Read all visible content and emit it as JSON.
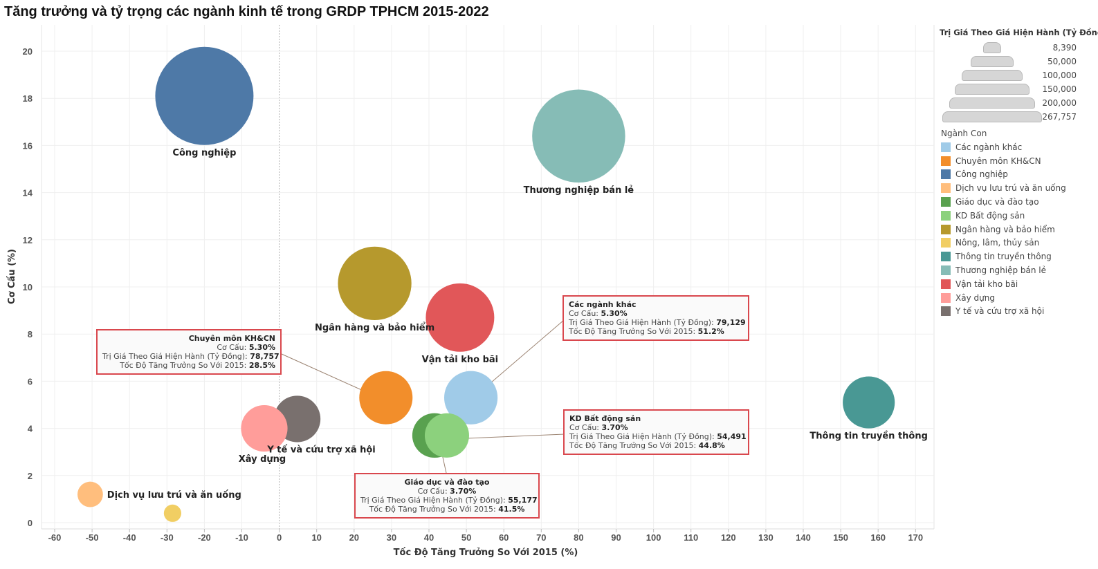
{
  "title": "Tăng trưởng và tỷ trọng các ngành kinh tế trong GRDP TPHCM 2015-2022",
  "chart_data": {
    "type": "scatter",
    "xlabel": "Tốc Độ Tăng Trưởng So Với 2015 (%)",
    "ylabel": "Cơ Cấu (%)",
    "xlim": [
      -60,
      170
    ],
    "ylim": [
      0,
      20
    ],
    "x_ticks": [
      "-60",
      "-50",
      "-40",
      "-30",
      "-20",
      "-10",
      "0",
      "10",
      "20",
      "30",
      "40",
      "50",
      "60",
      "70",
      "80",
      "90",
      "100",
      "110",
      "120",
      "130",
      "140",
      "150",
      "160",
      "170"
    ],
    "y_ticks": [
      "0",
      "2",
      "4",
      "6",
      "8",
      "10",
      "12",
      "14",
      "16",
      "18",
      "20"
    ],
    "grid": true,
    "points": [
      {
        "name": "Công nghiệp",
        "x": -20,
        "y": 18.1,
        "size": 267757,
        "color": "#4e79a7",
        "label": "Công nghiệp"
      },
      {
        "name": "Thương nghiệp bán lẻ",
        "x": 80,
        "y": 16.4,
        "size": 240000,
        "color": "#86bcb6",
        "label": "Thương nghiệp bán lẻ"
      },
      {
        "name": "Ngân hàng và bảo hiểm",
        "x": 25.5,
        "y": 10.15,
        "size": 150000,
        "color": "#b6992d",
        "label": "Ngân hàng và bảo hiểm"
      },
      {
        "name": "Vận tải kho bãi",
        "x": 48.3,
        "y": 8.7,
        "size": 130000,
        "color": "#e15759",
        "label": "Vận tải kho bãi"
      },
      {
        "name": "Các ngành khác",
        "x": 51.2,
        "y": 5.3,
        "size": 79129,
        "color": "#a0cbe8",
        "label": ""
      },
      {
        "name": "Chuyên môn KH&CN",
        "x": 28.5,
        "y": 5.3,
        "size": 78757,
        "color": "#f28e2b",
        "label": ""
      },
      {
        "name": "KD Bất động sản",
        "x": 44.8,
        "y": 3.7,
        "size": 54491,
        "color": "#8cd17d",
        "label": ""
      },
      {
        "name": "Giáo dục và đào tạo",
        "x": 41.5,
        "y": 3.7,
        "size": 55177,
        "color": "#59a14f",
        "label": ""
      },
      {
        "name": "Thông tin truyền thông",
        "x": 157.5,
        "y": 5.1,
        "size": 75000,
        "color": "#499894",
        "label": "Thông tin truyền thông"
      },
      {
        "name": "Y tế và cứu trợ xã hội",
        "x": 4.8,
        "y": 4.4,
        "size": 60000,
        "color": "#79706e",
        "label": "Y tế và cứu trợ xã hội"
      },
      {
        "name": "Xây dựng",
        "x": -4,
        "y": 4.0,
        "size": 60000,
        "color": "#ff9d9a",
        "label": "Xây dựng"
      },
      {
        "name": "Dịch vụ lưu trú và ăn uống",
        "x": -50.5,
        "y": 1.2,
        "size": 18000,
        "color": "#ffbe7d",
        "label": "Dịch vụ lưu trú và ăn uống"
      },
      {
        "name": "Nông, lâm, thủy sản",
        "x": -28.5,
        "y": 0.4,
        "size": 8390,
        "color": "#f1ce63",
        "label": ""
      }
    ],
    "tooltips": [
      {
        "name": "Chuyên môn KH&CN",
        "co_cau": "5.30%",
        "tri_gia": "78,757",
        "toc_do": "28.5%"
      },
      {
        "name": "Các ngành khác",
        "co_cau": "5.30%",
        "tri_gia": "79,129",
        "toc_do": "51.2%"
      },
      {
        "name": "KD Bất động sản",
        "co_cau": "3.70%",
        "tri_gia": "54,491",
        "toc_do": "44.8%"
      },
      {
        "name": "Giáo dục và đào tạo",
        "co_cau": "3.70%",
        "tri_gia": "55,177",
        "toc_do": "41.5%"
      }
    ],
    "tooltip_labels": {
      "co_cau": "Cơ Cấu: ",
      "tri_gia": "Trị Giá Theo Giá Hiện Hành (Tỷ Đồng): ",
      "toc_do": "Tốc Độ Tăng Trưởng So Với 2015: "
    },
    "size_legend": {
      "title": "Trị Giá Theo Giá Hiện Hành (Tỷ Đồng)",
      "values": [
        "8,390",
        "50,000",
        "100,000",
        "150,000",
        "200,000",
        "267,757"
      ],
      "amounts": [
        8390,
        50000,
        100000,
        150000,
        200000,
        267757
      ]
    },
    "color_legend": {
      "title": "Ngành Con",
      "items": [
        {
          "label": "Các ngành khác",
          "color": "#a0cbe8"
        },
        {
          "label": "Chuyên môn KH&CN",
          "color": "#f28e2b"
        },
        {
          "label": "Công nghiệp",
          "color": "#4e79a7"
        },
        {
          "label": "Dịch vụ lưu trú và ăn uống",
          "color": "#ffbe7d"
        },
        {
          "label": "Giáo dục và đào tạo",
          "color": "#59a14f"
        },
        {
          "label": "KD Bất động sản",
          "color": "#8cd17d"
        },
        {
          "label": "Ngân hàng và bảo hiểm",
          "color": "#b6992d"
        },
        {
          "label": "Nông, lâm, thủy sản",
          "color": "#f1ce63"
        },
        {
          "label": "Thông tin truyền thông",
          "color": "#499894"
        },
        {
          "label": "Thương nghiệp bán lẻ",
          "color": "#86bcb6"
        },
        {
          "label": "Vận tải kho bãi",
          "color": "#e15759"
        },
        {
          "label": "Xây dựng",
          "color": "#ff9d9a"
        },
        {
          "label": "Y tế và cứu trợ xã hội",
          "color": "#79706e"
        }
      ]
    }
  }
}
